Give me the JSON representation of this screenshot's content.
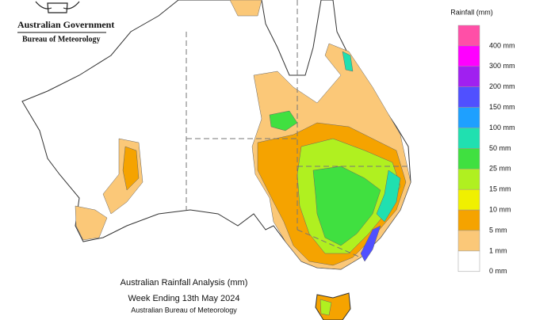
{
  "header": {
    "government": "Australian Government",
    "agency": "Bureau of Meteorology"
  },
  "legend": {
    "title": "Rainfall (mm)",
    "swatches": [
      "#ff4fa7",
      "#ff00ff",
      "#a020f0",
      "#5050ff",
      "#1ea0ff",
      "#20e0b0",
      "#40e040",
      "#b0f020",
      "#f0f000",
      "#f5a300",
      "#fbc878",
      "#ffffff"
    ],
    "labels": [
      "400 mm",
      "300 mm",
      "200 mm",
      "150 mm",
      "100 mm",
      "50 mm",
      "25 mm",
      "15 mm",
      "10 mm",
      "5 mm",
      "1 mm",
      "0 mm"
    ]
  },
  "caption": {
    "title": "Australian Rainfall Analysis (mm)",
    "period": "Week Ending 13th May 2024",
    "source": "Australian Bureau of Meteorology"
  }
}
